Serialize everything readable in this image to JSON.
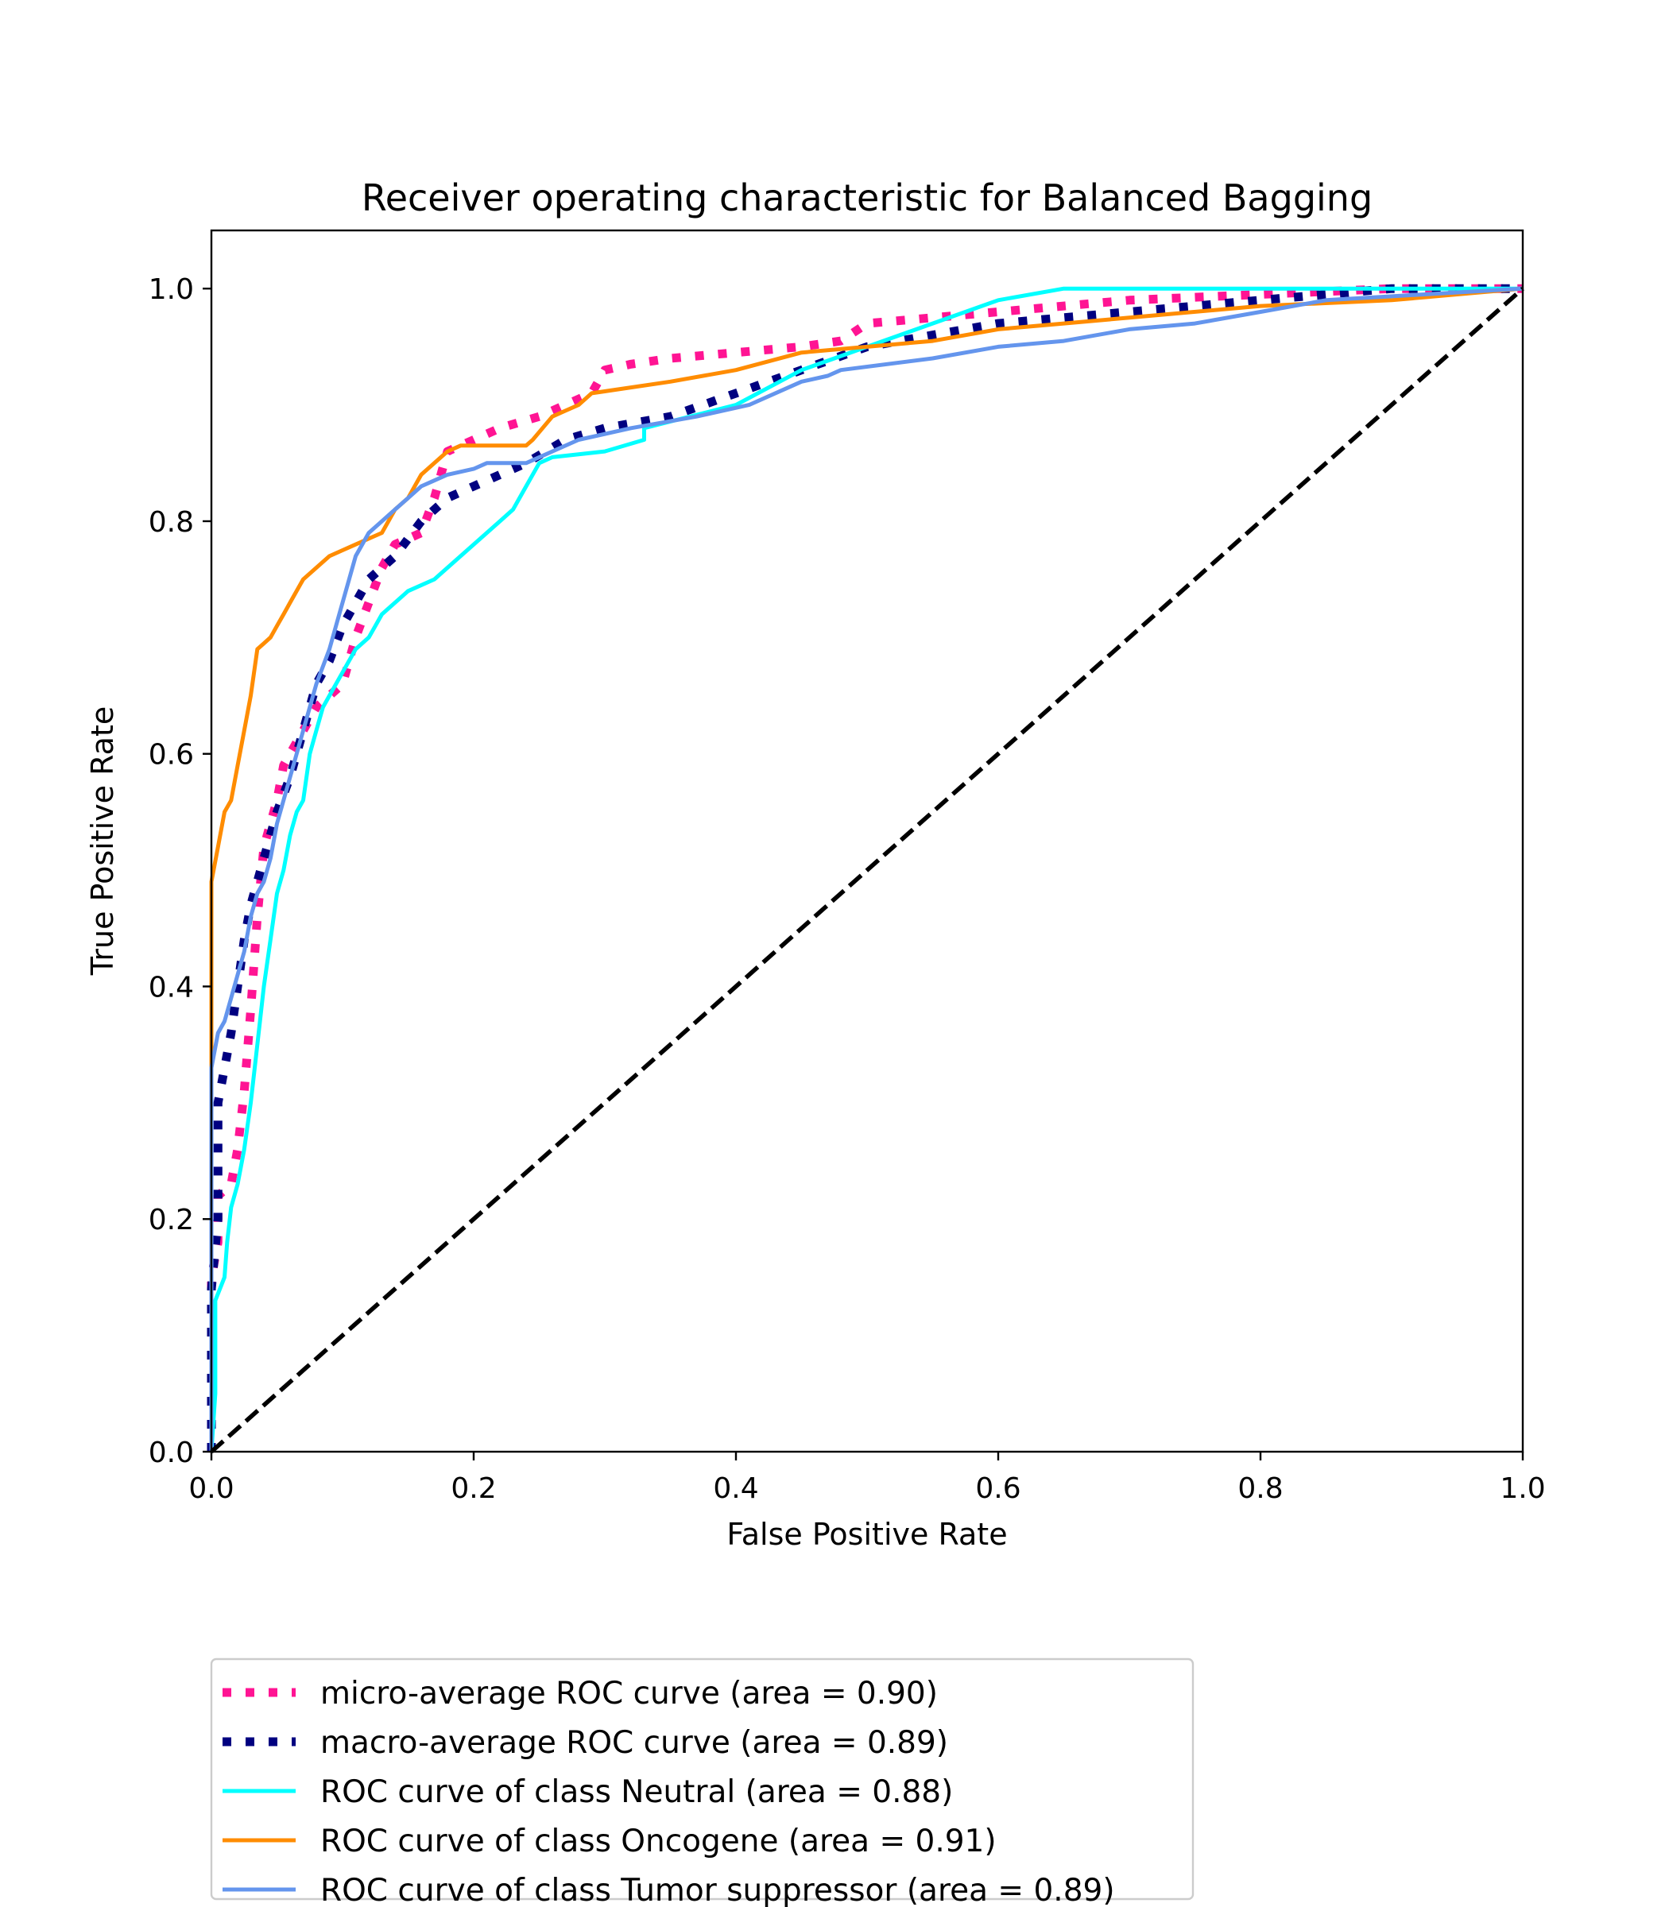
{
  "chart_data": {
    "type": "line",
    "title": "Receiver operating characteristic for Balanced Bagging",
    "xlabel": "False Positive Rate",
    "ylabel": "True Positive Rate",
    "xlim": [
      0.0,
      1.0
    ],
    "ylim": [
      0.0,
      1.05
    ],
    "x_ticks": [
      "0.0",
      "0.2",
      "0.4",
      "0.6",
      "0.8",
      "1.0"
    ],
    "y_ticks": [
      "0.0",
      "0.2",
      "0.4",
      "0.6",
      "0.8",
      "1.0"
    ],
    "grid": false,
    "legend_position": "below plot, left",
    "series": [
      {
        "name": "micro-average ROC curve (area = 0.90)",
        "color": "#ff1493",
        "style": "dotted",
        "x": [
          0.0,
          0.0,
          0.005,
          0.005,
          0.015,
          0.02,
          0.025,
          0.03,
          0.035,
          0.04,
          0.045,
          0.05,
          0.055,
          0.06,
          0.07,
          0.08,
          0.09,
          0.1,
          0.11,
          0.12,
          0.13,
          0.14,
          0.16,
          0.17,
          0.18,
          0.2,
          0.22,
          0.25,
          0.27,
          0.29,
          0.3,
          0.32,
          0.35,
          0.4,
          0.45,
          0.48,
          0.5,
          0.55,
          0.6,
          0.65,
          0.7,
          0.8,
          0.9,
          1.0
        ],
        "y": [
          0.0,
          0.15,
          0.18,
          0.22,
          0.23,
          0.26,
          0.31,
          0.38,
          0.46,
          0.52,
          0.54,
          0.56,
          0.59,
          0.6,
          0.62,
          0.64,
          0.65,
          0.66,
          0.7,
          0.73,
          0.76,
          0.78,
          0.79,
          0.82,
          0.86,
          0.87,
          0.88,
          0.89,
          0.9,
          0.91,
          0.93,
          0.935,
          0.94,
          0.945,
          0.95,
          0.955,
          0.97,
          0.975,
          0.98,
          0.985,
          0.99,
          0.995,
          1.0,
          1.0
        ]
      },
      {
        "name": "macro-average ROC curve (area = 0.89)",
        "color": "#000080",
        "style": "dotted",
        "x": [
          0.0,
          0.0,
          0.005,
          0.005,
          0.015,
          0.02,
          0.025,
          0.03,
          0.04,
          0.05,
          0.06,
          0.07,
          0.08,
          0.09,
          0.1,
          0.11,
          0.12,
          0.14,
          0.16,
          0.18,
          0.2,
          0.24,
          0.27,
          0.3,
          0.35,
          0.4,
          0.45,
          0.5,
          0.55,
          0.6,
          0.7,
          0.8,
          0.9,
          1.0
        ],
        "y": [
          0.0,
          0.14,
          0.2,
          0.3,
          0.36,
          0.4,
          0.44,
          0.47,
          0.51,
          0.55,
          0.58,
          0.62,
          0.66,
          0.68,
          0.71,
          0.73,
          0.75,
          0.77,
          0.8,
          0.82,
          0.83,
          0.85,
          0.87,
          0.88,
          0.89,
          0.91,
          0.93,
          0.95,
          0.96,
          0.97,
          0.98,
          0.99,
          1.0,
          1.0
        ]
      },
      {
        "name": "ROC curve of class Neutral (area = 0.88)",
        "color": "#00ffff",
        "style": "solid",
        "x": [
          0.0,
          0.003,
          0.003,
          0.01,
          0.012,
          0.015,
          0.02,
          0.025,
          0.03,
          0.035,
          0.04,
          0.045,
          0.05,
          0.055,
          0.06,
          0.065,
          0.07,
          0.075,
          0.08,
          0.085,
          0.09,
          0.1,
          0.11,
          0.12,
          0.125,
          0.13,
          0.15,
          0.17,
          0.18,
          0.19,
          0.2,
          0.21,
          0.22,
          0.23,
          0.24,
          0.25,
          0.26,
          0.3,
          0.33,
          0.33,
          0.4,
          0.45,
          0.5,
          0.55,
          0.6,
          0.65,
          0.8,
          1.0
        ],
        "y": [
          0.0,
          0.05,
          0.13,
          0.15,
          0.18,
          0.21,
          0.23,
          0.26,
          0.3,
          0.35,
          0.4,
          0.44,
          0.48,
          0.5,
          0.53,
          0.55,
          0.56,
          0.6,
          0.62,
          0.64,
          0.65,
          0.67,
          0.69,
          0.7,
          0.71,
          0.72,
          0.74,
          0.75,
          0.76,
          0.77,
          0.78,
          0.79,
          0.8,
          0.81,
          0.83,
          0.85,
          0.855,
          0.86,
          0.87,
          0.88,
          0.9,
          0.93,
          0.95,
          0.97,
          0.99,
          1.0,
          1.0,
          1.0
        ]
      },
      {
        "name": "ROC curve of class Oncogene (area = 0.91)",
        "color": "#ff8c00",
        "style": "solid",
        "x": [
          0.0,
          0.0,
          0.005,
          0.01,
          0.015,
          0.02,
          0.025,
          0.03,
          0.035,
          0.04,
          0.045,
          0.05,
          0.055,
          0.06,
          0.07,
          0.08,
          0.09,
          0.1,
          0.11,
          0.12,
          0.13,
          0.14,
          0.15,
          0.16,
          0.17,
          0.18,
          0.19,
          0.21,
          0.24,
          0.245,
          0.26,
          0.27,
          0.28,
          0.29,
          0.35,
          0.4,
          0.45,
          0.5,
          0.55,
          0.6,
          0.65,
          0.7,
          0.8,
          0.9,
          1.0
        ],
        "y": [
          0.0,
          0.49,
          0.52,
          0.55,
          0.56,
          0.59,
          0.62,
          0.65,
          0.69,
          0.695,
          0.7,
          0.71,
          0.72,
          0.73,
          0.75,
          0.76,
          0.77,
          0.775,
          0.78,
          0.785,
          0.79,
          0.81,
          0.82,
          0.84,
          0.85,
          0.86,
          0.865,
          0.865,
          0.865,
          0.87,
          0.89,
          0.895,
          0.9,
          0.91,
          0.92,
          0.93,
          0.945,
          0.95,
          0.955,
          0.965,
          0.97,
          0.975,
          0.985,
          0.99,
          1.0
        ]
      },
      {
        "name": "ROC curve of class Tumor suppressor (area = 0.89)",
        "color": "#6495ed",
        "style": "solid",
        "x": [
          0.0,
          0.0,
          0.005,
          0.01,
          0.015,
          0.02,
          0.025,
          0.03,
          0.035,
          0.04,
          0.045,
          0.05,
          0.06,
          0.07,
          0.08,
          0.09,
          0.1,
          0.105,
          0.11,
          0.12,
          0.13,
          0.14,
          0.15,
          0.16,
          0.17,
          0.18,
          0.2,
          0.21,
          0.24,
          0.26,
          0.28,
          0.3,
          0.32,
          0.37,
          0.41,
          0.45,
          0.47,
          0.48,
          0.55,
          0.6,
          0.65,
          0.7,
          0.75,
          0.8,
          0.85,
          1.0
        ],
        "y": [
          0.0,
          0.33,
          0.36,
          0.37,
          0.39,
          0.41,
          0.43,
          0.46,
          0.48,
          0.49,
          0.51,
          0.54,
          0.58,
          0.62,
          0.66,
          0.69,
          0.73,
          0.75,
          0.77,
          0.79,
          0.8,
          0.81,
          0.82,
          0.83,
          0.835,
          0.84,
          0.845,
          0.85,
          0.85,
          0.86,
          0.87,
          0.875,
          0.88,
          0.89,
          0.9,
          0.92,
          0.925,
          0.93,
          0.94,
          0.95,
          0.955,
          0.965,
          0.97,
          0.98,
          0.99,
          1.0
        ]
      },
      {
        "name": "",
        "color": "#000000",
        "style": "dashed",
        "x": [
          0.0,
          1.0
        ],
        "y": [
          0.0,
          1.0
        ]
      }
    ],
    "legend": [
      "micro-average ROC curve (area = 0.90)",
      "macro-average ROC curve (area = 0.89)",
      "ROC curve of class Neutral (area = 0.88)",
      "ROC curve of class Oncogene (area = 0.91)",
      "ROC curve of class Tumor suppressor (area = 0.89)"
    ]
  }
}
